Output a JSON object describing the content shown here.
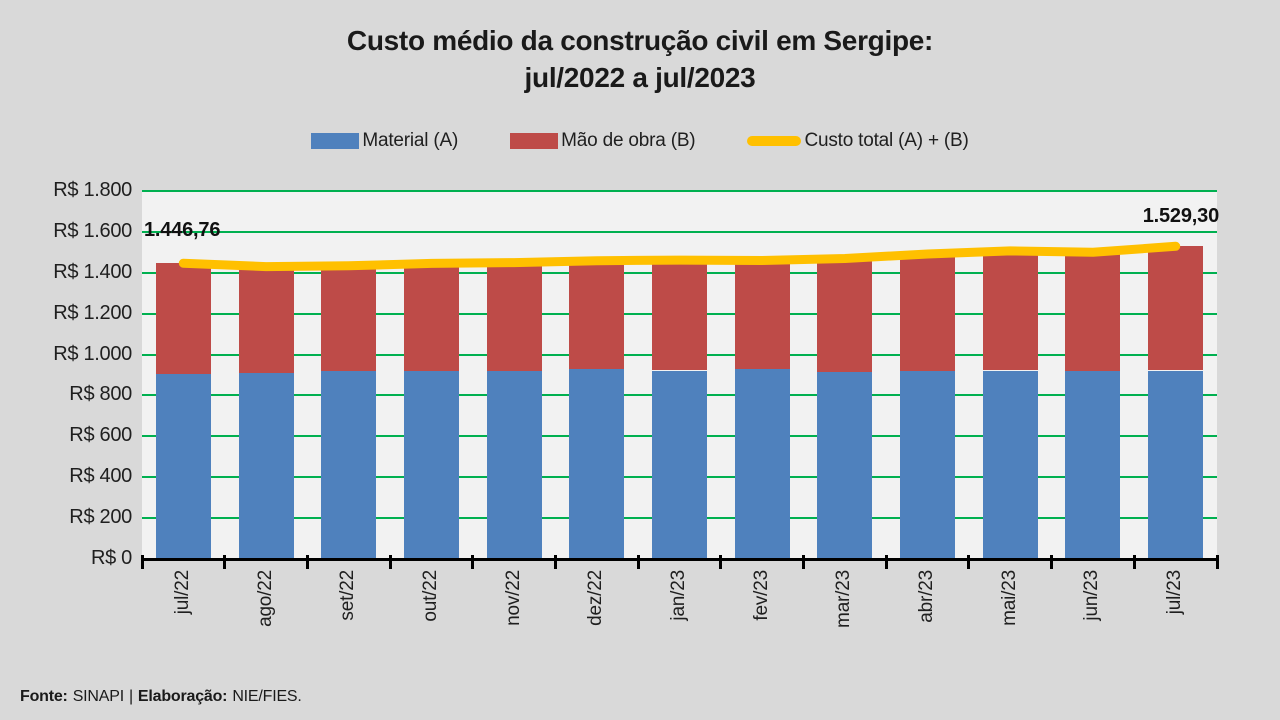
{
  "page": {
    "background": "#D9D9D9",
    "plot_background": "#F2F2F2",
    "gridline_color": "#00B050"
  },
  "title": {
    "line1": "Custo médio da construção civil em Sergipe:",
    "line2": "jul/2022 a jul/2023"
  },
  "legend": [
    {
      "label": "Material (A)",
      "color": "#4F81BD",
      "swatch": "box"
    },
    {
      "label": "Mão de obra (B)",
      "color": "#BE4B48",
      "swatch": "box"
    },
    {
      "label": "Custo total (A) + (B)",
      "color": "#FFC000",
      "swatch": "line"
    }
  ],
  "chart_data": {
    "type": "bar",
    "subtype": "stacked-bars-with-total-line",
    "title": "Custo médio da construção civil em Sergipe: jul/2022 a jul/2023",
    "categories": [
      "jul/22",
      "ago/22",
      "set/22",
      "out/22",
      "nov/22",
      "dez/22",
      "jan/23",
      "fev/23",
      "mar/23",
      "abr/23",
      "mai/23",
      "jun/23",
      "jul/23"
    ],
    "series": [
      {
        "name": "Material (A)",
        "type": "bar-stack-bottom",
        "color": "#4F81BD",
        "values": [
          905,
          909,
          918,
          921,
          921,
          930,
          922,
          930,
          914,
          918,
          922,
          919,
          922
        ]
      },
      {
        "name": "Mão de obra (B)",
        "type": "bar-stack-top",
        "color": "#BE4B48",
        "values": [
          541.76,
          521,
          516,
          525,
          529,
          529,
          540,
          530,
          556,
          574,
          585,
          581,
          607.3
        ]
      },
      {
        "name": "Custo total (A) + (B)",
        "type": "line",
        "color": "#FFC000",
        "values": [
          1446.76,
          1430,
          1434,
          1446,
          1450,
          1459,
          1462,
          1460,
          1470,
          1492,
          1507,
          1500,
          1529.3
        ]
      }
    ],
    "y_axis": {
      "min": 0,
      "max": 1800,
      "step": 200,
      "labels": [
        "R$ 1.800",
        "R$ 1.600",
        "R$ 1.400",
        "R$ 1.200",
        "R$ 1.000",
        "R$ 800",
        "R$ 600",
        "R$ 400",
        "R$ 200",
        "R$ 0"
      ]
    },
    "grid": "horizontal-green",
    "legend_position": "top",
    "annotations": [
      {
        "text": "1.446,76",
        "category": "jul/22",
        "value": 1446.76
      },
      {
        "text": "1.529,30",
        "category": "jul/23",
        "value": 1529.3
      }
    ]
  },
  "footer": {
    "fonte_label": "Fonte:",
    "fonte_value": "SINAPI",
    "separator": "|",
    "elaboracao_label": "Elaboração:",
    "elaboracao_value": "NIE/FIES."
  }
}
